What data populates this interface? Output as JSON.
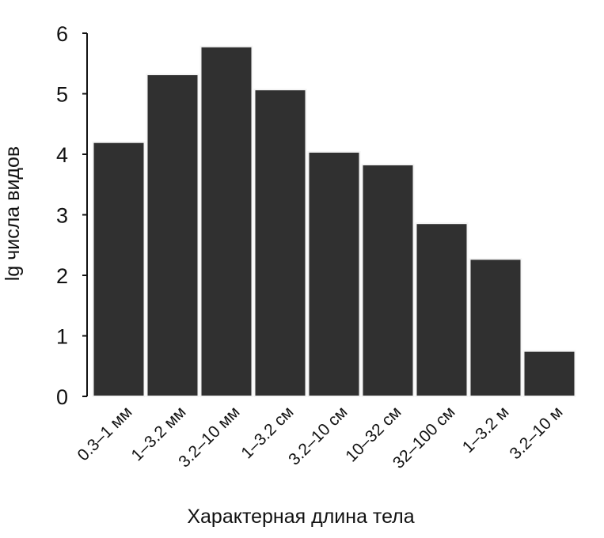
{
  "chart_data": {
    "type": "bar",
    "title": "",
    "xlabel": "Характерная длина тела",
    "ylabel": "lg числа видов",
    "categories": [
      "0.3–1 мм",
      "1–3.2 мм",
      "3.2–10 мм",
      "1–3.2 см",
      "3.2–10 см",
      "10–32 см",
      "32–100 см",
      "1–3.2 м",
      "3.2–10 м"
    ],
    "values": [
      4.2,
      5.32,
      5.78,
      5.07,
      4.04,
      3.83,
      2.86,
      2.27,
      0.75
    ],
    "ylim": [
      0,
      6
    ],
    "yticks": [
      "0",
      "1",
      "2",
      "3",
      "4",
      "5",
      "6"
    ],
    "grid": false,
    "legend": "none",
    "bar_color": "#303030"
  }
}
